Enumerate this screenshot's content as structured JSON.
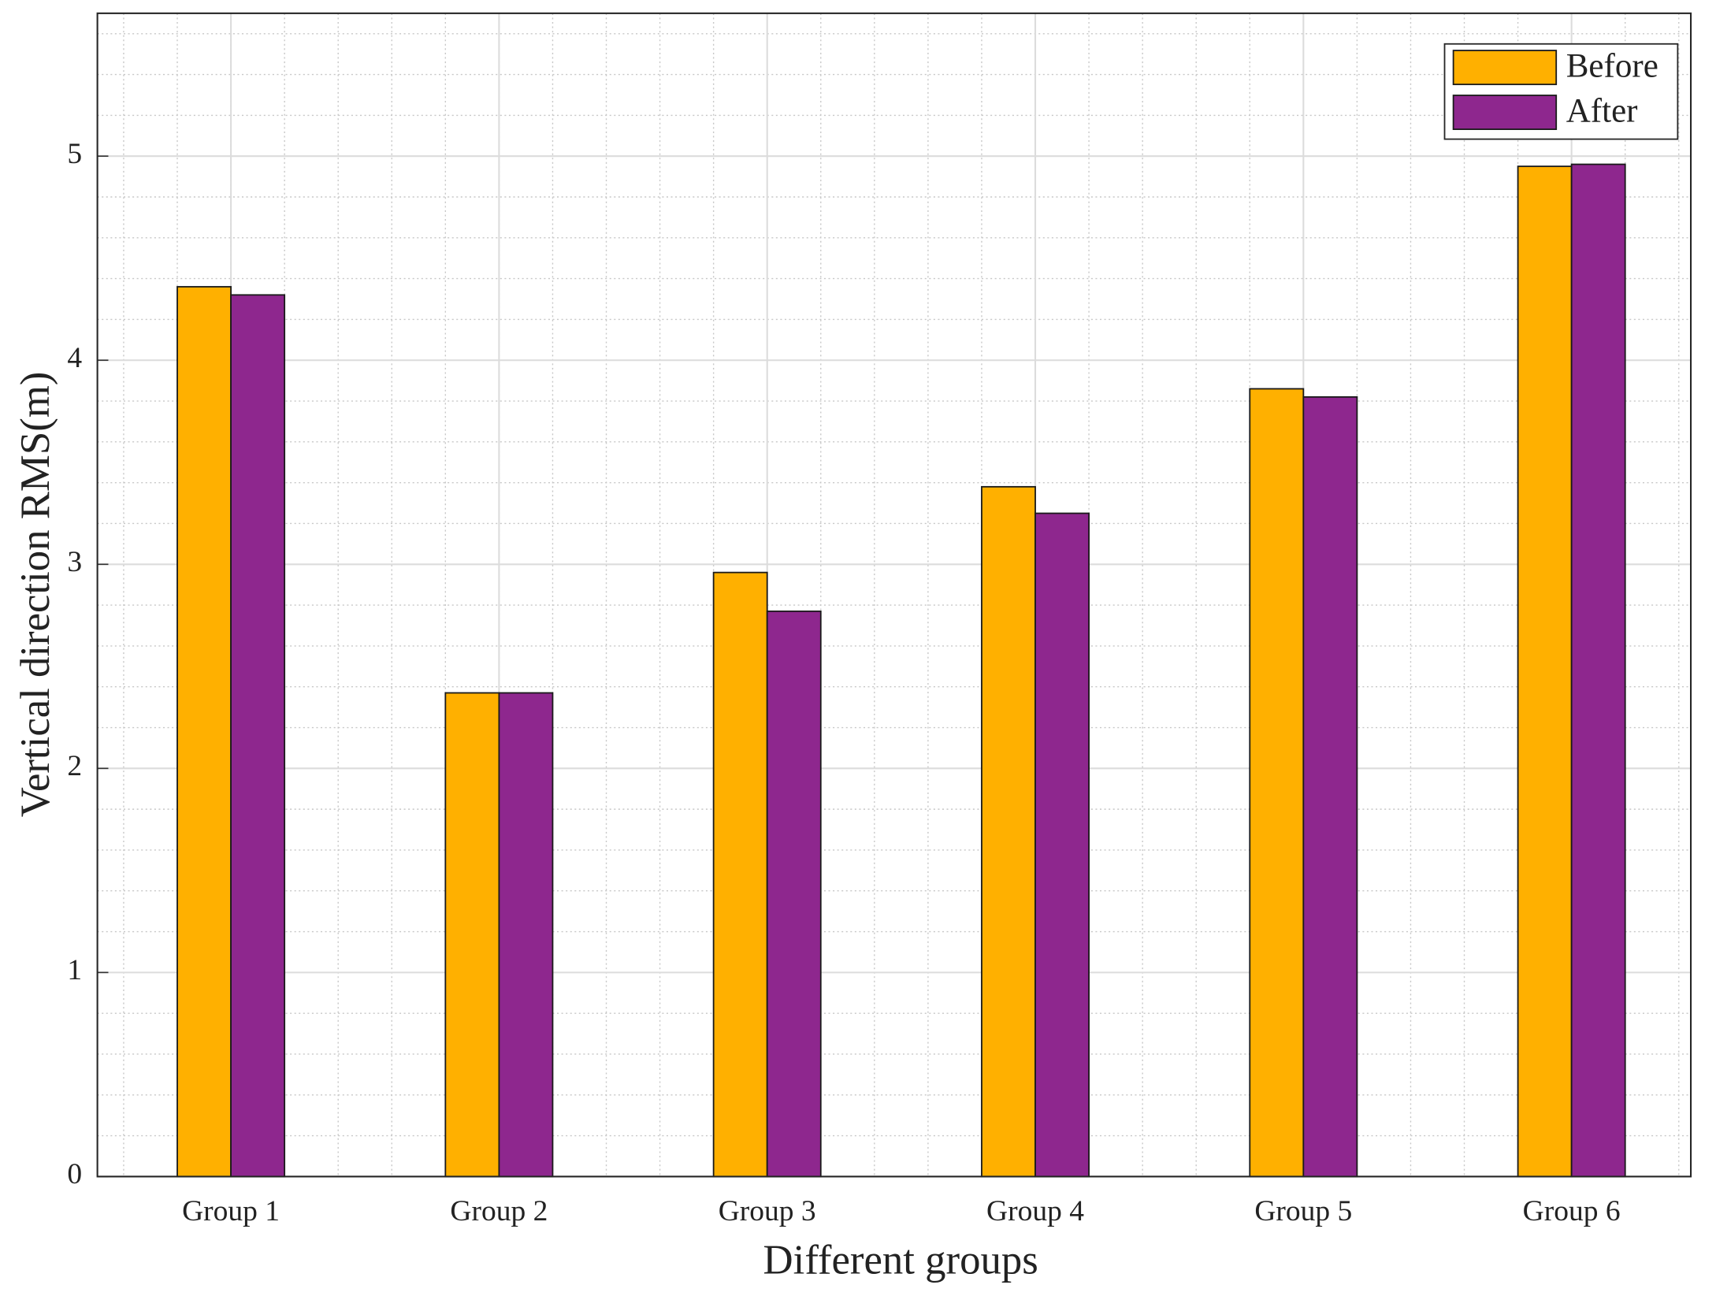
{
  "chart_data": {
    "type": "bar",
    "x_label": "Different groups",
    "y_label": "Vertical direction RMS(m)",
    "categories": [
      "Group 1",
      "Group 2",
      "Group 3",
      "Group 4",
      "Group 5",
      "Group 6"
    ],
    "series": [
      {
        "name": "Before",
        "color": "#FFB000",
        "values": [
          4.36,
          2.37,
          2.96,
          3.38,
          3.86,
          4.95
        ]
      },
      {
        "name": "After",
        "color": "#8E278E",
        "values": [
          4.32,
          2.37,
          2.77,
          3.25,
          3.82,
          4.96
        ]
      }
    ],
    "ylim": [
      0,
      5.7
    ],
    "yticks": [
      0,
      1,
      2,
      3,
      4,
      5
    ],
    "grid": true,
    "minor_grid": true,
    "legend": "northeast"
  }
}
